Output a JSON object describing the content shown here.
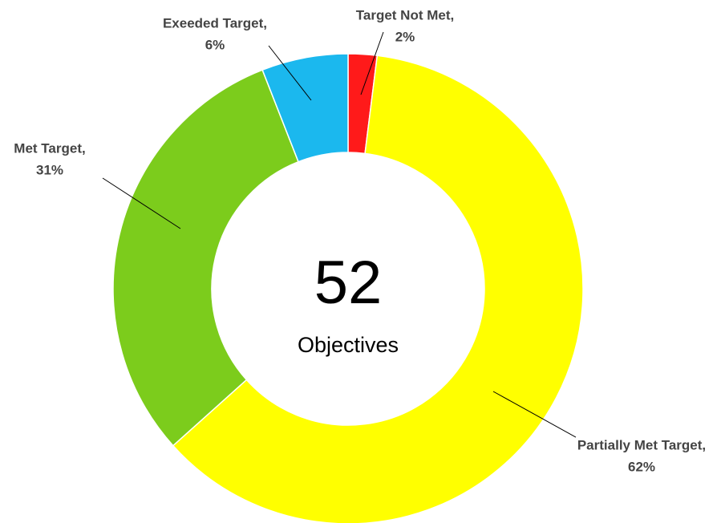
{
  "chart_data": {
    "type": "donut",
    "categories": [
      "Target Not Met,",
      "Partially Met Target,",
      "Met Target,",
      "Exeeded Target,"
    ],
    "values": [
      2,
      62,
      31,
      6
    ],
    "value_labels": [
      "2%",
      "62%",
      "31%",
      "6%"
    ],
    "colors": [
      "#ff1a1a",
      "#ffff00",
      "#7ccc1c",
      "#1bb8ee"
    ],
    "center_label": "52",
    "center_sublabel": "Objectives"
  }
}
